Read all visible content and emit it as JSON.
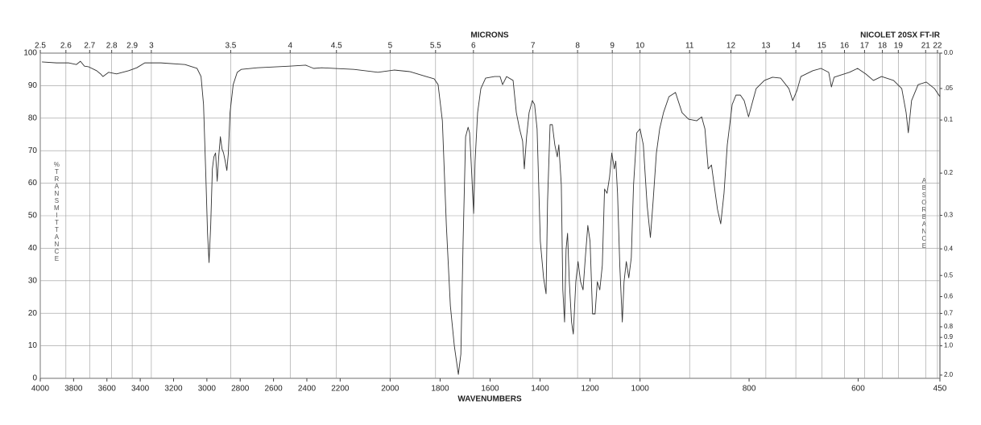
{
  "chart_data": {
    "type": "line",
    "title": "MICRONS",
    "xlabel": "WAVENUMBERS",
    "ylabel": "%TRANSMITTANCE",
    "y2label": "ABSORBANCE",
    "annotation": "NICOLET 20SX FT-IR",
    "color": "#333333",
    "grid": true,
    "x_segments": [
      4000,
      2200,
      1000,
      450
    ],
    "xlim": [
      4000,
      450
    ],
    "xticks": [
      4000,
      3800,
      3600,
      3400,
      3200,
      3000,
      2800,
      2600,
      2400,
      2200,
      2000,
      1800,
      1600,
      1400,
      1200,
      1000,
      800,
      600,
      450
    ],
    "x2ticks": [
      2.5,
      2.6,
      2.7,
      2.8,
      2.9,
      3,
      3.5,
      4,
      4.5,
      5,
      5.5,
      6,
      7,
      8,
      9,
      10,
      11,
      12,
      13,
      14,
      15,
      16,
      17,
      18,
      19,
      21,
      22
    ],
    "ylim": [
      0,
      100
    ],
    "yticks": [
      0,
      10,
      20,
      30,
      40,
      50,
      60,
      70,
      80,
      90,
      100
    ],
    "y2_scale": "absorbance",
    "y2ticks": [
      {
        "value": 0,
        "label": "0.0"
      },
      {
        "value": 0.05,
        "label": ".05"
      },
      0.1,
      0.2,
      0.3,
      0.4,
      0.5,
      0.6,
      0.7,
      0.8,
      0.9,
      {
        "value": 1,
        "label": "1.0"
      },
      {
        "value": 2,
        "label": "2.0"
      }
    ],
    "x": [
      3990,
      3903,
      3831,
      3783,
      3759,
      3735,
      3710,
      3662,
      3638,
      3624,
      3590,
      3542,
      3469,
      3421,
      3373,
      3276,
      3131,
      3059,
      3035,
      3020,
      3006,
      2996,
      2987,
      2977,
      2967,
      2958,
      2948,
      2938,
      2929,
      2919,
      2909,
      2900,
      2890,
      2880,
      2871,
      2861,
      2842,
      2818,
      2794,
      2697,
      2504,
      2407,
      2359,
      2311,
      2145,
      2049,
      1984,
      1920,
      1856,
      1824,
      1808,
      1791,
      1775,
      1759,
      1743,
      1727,
      1717,
      1708,
      1698,
      1688,
      1682,
      1676,
      1666,
      1660,
      1650,
      1637,
      1618,
      1582,
      1560,
      1550,
      1534,
      1508,
      1495,
      1482,
      1470,
      1463,
      1454,
      1444,
      1431,
      1422,
      1412,
      1399,
      1386,
      1376,
      1370,
      1360,
      1351,
      1341,
      1331,
      1325,
      1315,
      1309,
      1302,
      1296,
      1290,
      1283,
      1274,
      1267,
      1257,
      1248,
      1238,
      1228,
      1219,
      1209,
      1200,
      1190,
      1180,
      1171,
      1161,
      1151,
      1142,
      1132,
      1122,
      1113,
      1103,
      1097,
      1090,
      1081,
      1071,
      1064,
      1055,
      1045,
      1035,
      1026,
      1013,
      1000,
      994,
      987,
      981,
      976,
      970,
      964,
      957,
      947,
      935,
      923,
      911,
      896,
      887,
      881,
      875,
      869,
      864,
      858,
      852,
      846,
      840,
      831,
      824,
      816,
      809,
      801,
      795,
      787,
      772,
      757,
      742,
      727,
      720,
      712,
      705,
      683,
      668,
      654,
      649,
      644,
      631,
      616,
      601,
      586,
      572,
      557,
      535,
      520,
      512,
      508,
      502,
      490,
      475,
      460,
      450
    ],
    "values": [
      97.3,
      97.0,
      97.0,
      96.5,
      97.5,
      96.0,
      95.8,
      94.6,
      93.6,
      92.8,
      94.1,
      93.6,
      94.6,
      95.5,
      97.0,
      97.0,
      96.5,
      95.3,
      92.8,
      84.2,
      61.9,
      44.6,
      35.6,
      47.0,
      64.4,
      68.1,
      69.3,
      60.6,
      68.1,
      74.3,
      70.5,
      69.3,
      66.8,
      63.9,
      69.3,
      81.7,
      90.3,
      94.1,
      95.0,
      95.5,
      96.0,
      96.3,
      95.3,
      95.5,
      95.0,
      94.1,
      94.8,
      94.3,
      92.8,
      92.1,
      90.3,
      79.2,
      47.0,
      22.3,
      9.9,
      1.2,
      7.4,
      42.1,
      74.3,
      77.2,
      75.5,
      66.8,
      50.7,
      66.8,
      81.7,
      89.1,
      92.3,
      92.8,
      92.8,
      90.3,
      92.8,
      91.6,
      81.7,
      76.7,
      73.0,
      64.4,
      74.3,
      81.7,
      85.4,
      84.2,
      76.7,
      42.1,
      30.9,
      26.0,
      54.5,
      78.0,
      78.0,
      71.8,
      68.1,
      71.8,
      59.4,
      27.2,
      17.3,
      39.6,
      44.6,
      29.7,
      17.3,
      13.6,
      29.7,
      35.9,
      29.7,
      27.2,
      37.1,
      47.0,
      42.1,
      19.8,
      19.8,
      29.7,
      27.2,
      34.7,
      58.2,
      56.9,
      61.9,
      69.3,
      64.4,
      66.8,
      56.9,
      34.7,
      17.3,
      29.7,
      35.9,
      30.9,
      37.1,
      59.4,
      75.5,
      76.7,
      71.8,
      53.2,
      43.3,
      54.5,
      69.3,
      76.7,
      81.7,
      86.6,
      87.9,
      81.7,
      79.7,
      79.2,
      80.4,
      76.7,
      64.4,
      65.6,
      59.4,
      52.0,
      47.5,
      56.9,
      71.8,
      84.2,
      87.1,
      87.1,
      85.4,
      80.4,
      84.2,
      89.1,
      91.6,
      92.6,
      92.3,
      89.1,
      85.4,
      88.6,
      92.8,
      94.6,
      95.3,
      94.1,
      89.6,
      92.6,
      93.3,
      94.1,
      95.3,
      93.6,
      91.6,
      92.8,
      91.6,
      89.1,
      81.7,
      75.5,
      85.4,
      90.3,
      91.1,
      89.1,
      86.6
    ]
  }
}
